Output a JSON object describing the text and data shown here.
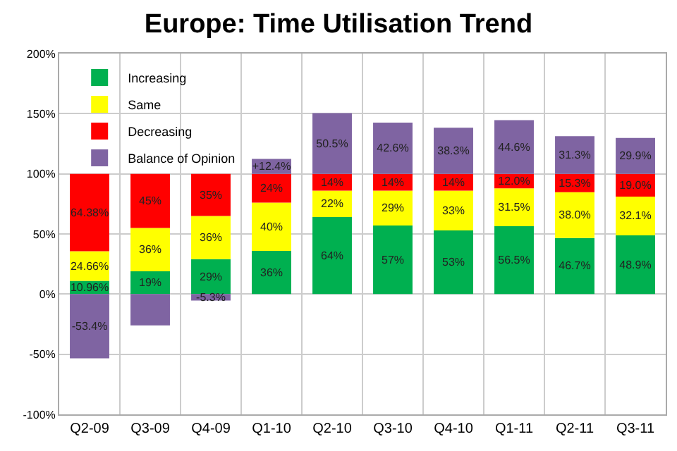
{
  "chart_data": {
    "type": "bar",
    "title": "Europe: Time Utilisation Trend",
    "stacked": true,
    "categories": [
      "Q2-09",
      "Q3-09",
      "Q4-09",
      "Q1-10",
      "Q2-10",
      "Q3-10",
      "Q4-10",
      "Q1-11",
      "Q2-11",
      "Q3-11"
    ],
    "series": [
      {
        "name": "Increasing",
        "color": "#00b050",
        "values": [
          10.96,
          19,
          29,
          36,
          64,
          57,
          53,
          56.5,
          46.7,
          48.9
        ],
        "value_labels": [
          "10.96%",
          "19%",
          "29%",
          "36%",
          "64%",
          "57%",
          "53%",
          "56.5%",
          "46.7%",
          "48.9%"
        ]
      },
      {
        "name": "Same",
        "color": "#ffff00",
        "values": [
          24.66,
          36,
          36,
          40,
          22,
          29,
          33,
          31.5,
          38.0,
          32.1
        ],
        "value_labels": [
          "24.66%",
          "36%",
          "36%",
          "40%",
          "22%",
          "29%",
          "33%",
          "31.5%",
          "38.0%",
          "32.1%"
        ]
      },
      {
        "name": "Decreasing",
        "color": "#ff0000",
        "values": [
          64.38,
          45,
          35,
          24,
          14,
          14,
          14,
          12.0,
          15.3,
          19.0
        ],
        "value_labels": [
          "64.38%",
          "45%",
          "35%",
          "24%",
          "14%",
          "14%",
          "14%",
          "12.0%",
          "15.3%",
          "19.0%"
        ]
      },
      {
        "name": "Balance of Opinion",
        "color": "#7f64a2",
        "values": [
          -53.4,
          -26,
          -5.3,
          12.4,
          50.5,
          42.6,
          38.3,
          44.6,
          31.3,
          29.9
        ],
        "value_labels": [
          "-53.4%",
          null,
          "-5.3%",
          "+12.4%",
          "50.5%",
          "42.6%",
          "38.3%",
          "44.6%",
          "31.3%",
          "29.9%"
        ]
      }
    ],
    "ylim": [
      -100,
      200
    ],
    "yticks": [
      {
        "value": -100,
        "label": "-100%"
      },
      {
        "value": -50,
        "label": "-50%"
      },
      {
        "value": 0,
        "label": "0%"
      },
      {
        "value": 50,
        "label": "50%"
      },
      {
        "value": 100,
        "label": "100%"
      },
      {
        "value": 150,
        "label": "150%"
      },
      {
        "value": 200,
        "label": "200%"
      }
    ],
    "grid": true,
    "legend": "top left"
  }
}
